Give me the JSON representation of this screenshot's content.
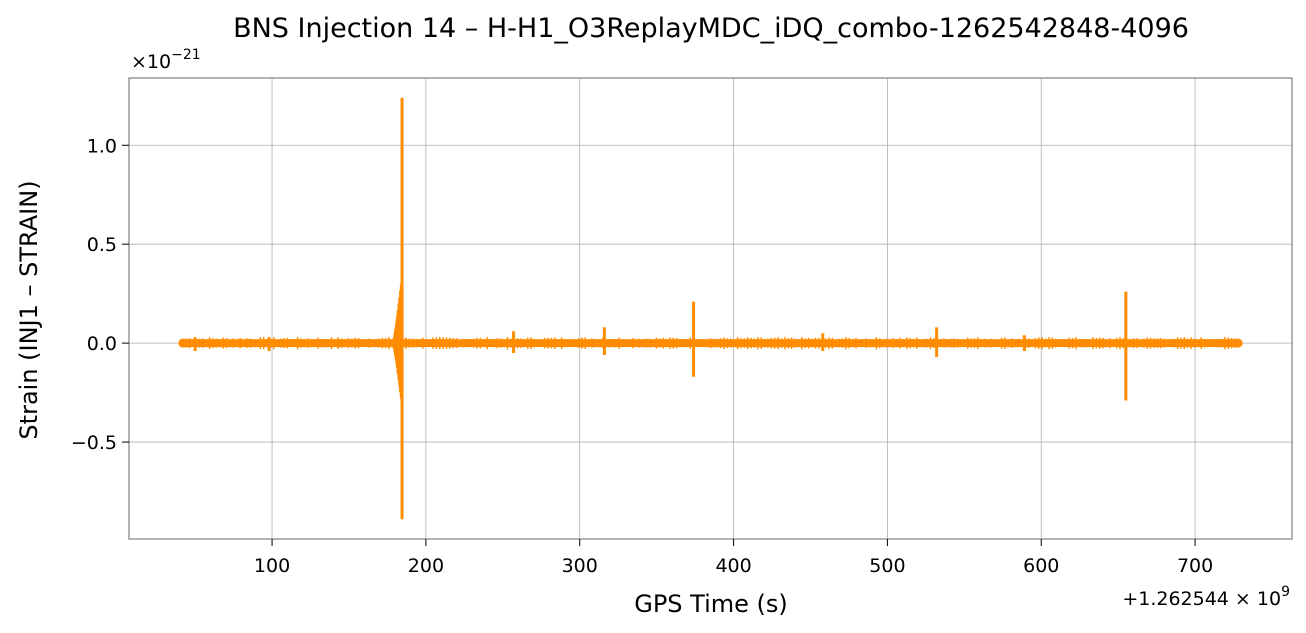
{
  "chart_data": {
    "type": "line",
    "title": "BNS Injection 14 – H-H1_O3ReplayMDC_iDQ_combo-1262542848-4096",
    "xlabel": "GPS Time (s)",
    "ylabel": "Strain (INJ1 – STRAIN)",
    "x_offset_label": "+1.262544 × 10^9",
    "y_scale_label": "×10^-21",
    "xlim": [
      7,
      763
    ],
    "ylim": [
      -0.99,
      1.34
    ],
    "xticks": [
      100,
      200,
      300,
      400,
      500,
      600,
      700
    ],
    "xtick_labels": [
      "100",
      "200",
      "300",
      "400",
      "500",
      "600",
      "700"
    ],
    "yticks": [
      -0.5,
      0.0,
      0.5,
      1.0
    ],
    "ytick_labels": [
      "−0.5",
      "0.0",
      "0.5",
      "1.0"
    ],
    "grid": true,
    "x_range": [
      42,
      728
    ],
    "baseline_amplitude": 0.02,
    "series": [
      {
        "color": "#ff8c00",
        "bursts": [
          {
            "x": 50,
            "max": 0.03,
            "min": -0.04
          },
          {
            "x": 98,
            "max": 0.03,
            "min": -0.04
          },
          {
            "x": 184.5,
            "max": 1.24,
            "min": -0.89,
            "envelope_max": 0.33,
            "envelope_min": -0.31
          },
          {
            "x": 257,
            "max": 0.06,
            "min": -0.05
          },
          {
            "x": 316,
            "max": 0.08,
            "min": -0.06
          },
          {
            "x": 374,
            "max": 0.21,
            "min": -0.17
          },
          {
            "x": 458,
            "max": 0.05,
            "min": -0.04
          },
          {
            "x": 532,
            "max": 0.08,
            "min": -0.07
          },
          {
            "x": 589,
            "max": 0.04,
            "min": -0.04
          },
          {
            "x": 655,
            "max": 0.26,
            "min": -0.29
          }
        ]
      }
    ]
  }
}
